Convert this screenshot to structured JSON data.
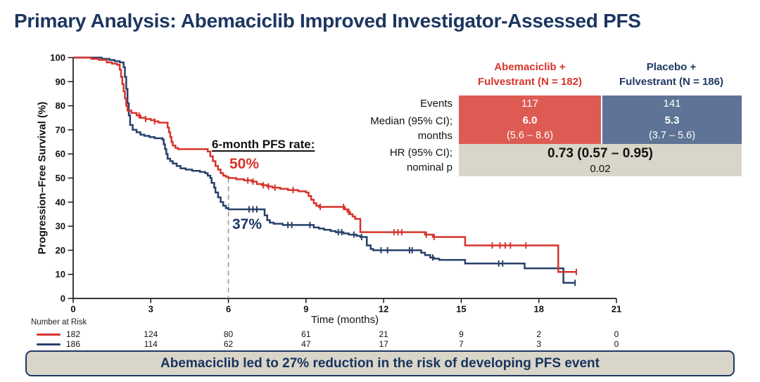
{
  "title": "Primary Analysis: Abemaciclib Improved Investigator-Assessed PFS",
  "colors": {
    "navy": "#1F3864",
    "red_line": "#D6342C",
    "blue_line": "#27406B",
    "red_fill": "#DD5B52",
    "blue_fill": "#5F7396",
    "gray_fill": "#D9D5C9",
    "axis": "#1A1A1A",
    "dashed": "#9A9A9A"
  },
  "annotation": {
    "heading": "6-month PFS rate:",
    "red_rate": "50%",
    "blue_rate": "37%"
  },
  "results_table": {
    "columns": [
      {
        "line1": "Abemaciclib +",
        "line2": "Fulvestrant (N = 182)"
      },
      {
        "line1": "Placebo +",
        "line2": "Fulvestrant (N = 186)"
      }
    ],
    "row_labels": {
      "events": "Events",
      "median_line1": "Median (95% CI);",
      "median_line2": "months",
      "hr_line1": "HR (95% CI);",
      "hr_line2": "nominal p"
    },
    "abemaciclib": {
      "events": "117",
      "median": "6.0",
      "median_ci": "(5.6 – 8.6)"
    },
    "placebo": {
      "events": "141",
      "median": "5.3",
      "median_ci": "(3.7 – 5.6)"
    },
    "hr": "0.73 (0.57 – 0.95)",
    "nominal_p": "0.02"
  },
  "banner": "Abemaciclib led to 27% reduction in the risk of developing PFS event",
  "chart_data": {
    "type": "line",
    "subtype": "kaplan-meier-step",
    "title": "Investigator-assessed progression-free survival",
    "xlabel": "Time (months)",
    "ylabel": "Progression–Free Survival (%)",
    "xlim": [
      0,
      21
    ],
    "ylim": [
      0,
      100
    ],
    "x_ticks": [
      0,
      3,
      6,
      9,
      12,
      15,
      18,
      21
    ],
    "y_tick_step": 10,
    "grid": false,
    "dashed_marker": {
      "x": 6,
      "y_top": 50,
      "y_bottom": 0
    },
    "series": [
      {
        "name": "Abemaciclib + Fulvestrant",
        "color": "#D6342C",
        "six_month_rate": 50,
        "median_months": 6.0,
        "steps": [
          [
            0,
            100
          ],
          [
            0.7,
            99.5
          ],
          [
            1.0,
            99
          ],
          [
            1.3,
            98
          ],
          [
            1.5,
            97.5
          ],
          [
            1.7,
            97
          ],
          [
            1.8,
            95
          ],
          [
            1.85,
            92
          ],
          [
            1.9,
            89
          ],
          [
            1.95,
            86
          ],
          [
            2.0,
            83
          ],
          [
            2.05,
            80
          ],
          [
            2.1,
            78
          ],
          [
            2.25,
            77
          ],
          [
            2.45,
            76
          ],
          [
            2.6,
            75
          ],
          [
            2.8,
            74.5
          ],
          [
            3.0,
            74
          ],
          [
            3.15,
            73.5
          ],
          [
            3.3,
            73
          ],
          [
            3.65,
            71
          ],
          [
            3.7,
            69
          ],
          [
            3.75,
            67
          ],
          [
            3.8,
            65
          ],
          [
            3.85,
            63.5
          ],
          [
            3.95,
            62.5
          ],
          [
            4.05,
            62
          ],
          [
            5.2,
            61
          ],
          [
            5.3,
            59
          ],
          [
            5.4,
            57
          ],
          [
            5.5,
            55
          ],
          [
            5.6,
            53.5
          ],
          [
            5.7,
            52
          ],
          [
            5.8,
            51
          ],
          [
            5.9,
            50.5
          ],
          [
            6.0,
            50
          ],
          [
            6.3,
            49.5
          ],
          [
            6.6,
            49
          ],
          [
            6.9,
            48.5
          ],
          [
            7.1,
            47.5
          ],
          [
            7.3,
            47
          ],
          [
            7.5,
            46.5
          ],
          [
            7.7,
            46
          ],
          [
            8.0,
            45.5
          ],
          [
            8.3,
            45
          ],
          [
            8.7,
            44.5
          ],
          [
            9.0,
            44
          ],
          [
            9.1,
            42.5
          ],
          [
            9.2,
            41
          ],
          [
            9.3,
            39.5
          ],
          [
            9.4,
            38.5
          ],
          [
            9.5,
            38
          ],
          [
            10.5,
            37
          ],
          [
            10.6,
            36
          ],
          [
            10.7,
            35
          ],
          [
            10.8,
            34
          ],
          [
            10.9,
            33
          ],
          [
            11.1,
            27.5
          ],
          [
            13.6,
            26.5
          ],
          [
            13.9,
            25.5
          ],
          [
            15.15,
            22
          ],
          [
            18.75,
            11
          ],
          [
            19.45,
            11
          ]
        ],
        "censors": [
          [
            2.55,
            76
          ],
          [
            2.8,
            74.5
          ],
          [
            3.15,
            73.5
          ],
          [
            6.75,
            49
          ],
          [
            6.95,
            48.5
          ],
          [
            7.35,
            47
          ],
          [
            7.55,
            46.5
          ],
          [
            7.8,
            46
          ],
          [
            8.5,
            45
          ],
          [
            9.55,
            38
          ],
          [
            10.45,
            38
          ],
          [
            10.65,
            36
          ],
          [
            12.4,
            27.5
          ],
          [
            12.55,
            27.5
          ],
          [
            12.7,
            27.5
          ],
          [
            13.65,
            26.5
          ],
          [
            13.95,
            25.5
          ],
          [
            16.2,
            22
          ],
          [
            16.5,
            22
          ],
          [
            16.7,
            22
          ],
          [
            16.9,
            22
          ],
          [
            17.5,
            22
          ],
          [
            19.45,
            11
          ]
        ]
      },
      {
        "name": "Placebo + Fulvestrant",
        "color": "#27406B",
        "six_month_rate": 37,
        "median_months": 5.3,
        "steps": [
          [
            0,
            100
          ],
          [
            1.1,
            99.5
          ],
          [
            1.4,
            99
          ],
          [
            1.6,
            98.5
          ],
          [
            1.8,
            98
          ],
          [
            1.95,
            96
          ],
          [
            2.0,
            92
          ],
          [
            2.05,
            87
          ],
          [
            2.1,
            81
          ],
          [
            2.15,
            76
          ],
          [
            2.2,
            72
          ],
          [
            2.3,
            70
          ],
          [
            2.45,
            69
          ],
          [
            2.6,
            68
          ],
          [
            2.75,
            67.5
          ],
          [
            2.95,
            67
          ],
          [
            3.15,
            66.5
          ],
          [
            3.45,
            66
          ],
          [
            3.5,
            64
          ],
          [
            3.55,
            62
          ],
          [
            3.6,
            60
          ],
          [
            3.65,
            58
          ],
          [
            3.75,
            57
          ],
          [
            3.85,
            56
          ],
          [
            4.0,
            55
          ],
          [
            4.15,
            54
          ],
          [
            4.35,
            53.5
          ],
          [
            4.6,
            53
          ],
          [
            4.9,
            52.5
          ],
          [
            5.1,
            52
          ],
          [
            5.2,
            51
          ],
          [
            5.3,
            50
          ],
          [
            5.35,
            48
          ],
          [
            5.45,
            46
          ],
          [
            5.5,
            44
          ],
          [
            5.6,
            42
          ],
          [
            5.7,
            40
          ],
          [
            5.8,
            38.5
          ],
          [
            5.9,
            37.5
          ],
          [
            6.0,
            37
          ],
          [
            7.4,
            34.5
          ],
          [
            7.5,
            32.5
          ],
          [
            7.6,
            31.5
          ],
          [
            7.75,
            31
          ],
          [
            8.1,
            30.5
          ],
          [
            9.3,
            29.5
          ],
          [
            9.5,
            29
          ],
          [
            9.7,
            28.5
          ],
          [
            9.95,
            28
          ],
          [
            10.15,
            27.5
          ],
          [
            10.45,
            27
          ],
          [
            10.65,
            26.5
          ],
          [
            10.95,
            26
          ],
          [
            11.1,
            25.5
          ],
          [
            11.35,
            22
          ],
          [
            11.5,
            20.5
          ],
          [
            11.6,
            20
          ],
          [
            13.45,
            19
          ],
          [
            13.6,
            18
          ],
          [
            13.8,
            17
          ],
          [
            13.95,
            16.5
          ],
          [
            14.15,
            16
          ],
          [
            15.15,
            14.5
          ],
          [
            17.45,
            12.5
          ],
          [
            18.95,
            6.5
          ],
          [
            19.4,
            6.5
          ]
        ],
        "censors": [
          [
            6.8,
            37
          ],
          [
            6.95,
            37
          ],
          [
            7.1,
            37
          ],
          [
            8.3,
            30.5
          ],
          [
            8.45,
            30.5
          ],
          [
            9.15,
            30.5
          ],
          [
            10.25,
            27.5
          ],
          [
            10.38,
            27.5
          ],
          [
            10.85,
            26.5
          ],
          [
            11.15,
            25.5
          ],
          [
            11.9,
            20
          ],
          [
            12.15,
            20
          ],
          [
            13.0,
            20
          ],
          [
            13.1,
            20
          ],
          [
            13.9,
            17
          ],
          [
            16.45,
            14.5
          ],
          [
            16.6,
            14.5
          ],
          [
            19.4,
            6.5
          ]
        ]
      }
    ],
    "risk_table": {
      "label": "Number at Risk",
      "months": [
        0,
        3,
        6,
        9,
        12,
        15,
        18,
        21
      ],
      "rows": [
        {
          "name": "Abemaciclib + Fulvestrant",
          "color": "#D6342C",
          "values": [
            182,
            124,
            80,
            61,
            21,
            9,
            2,
            0
          ]
        },
        {
          "name": "Placebo + Fulvestrant",
          "color": "#27406B",
          "values": [
            186,
            114,
            62,
            47,
            17,
            7,
            3,
            0
          ]
        }
      ]
    }
  }
}
